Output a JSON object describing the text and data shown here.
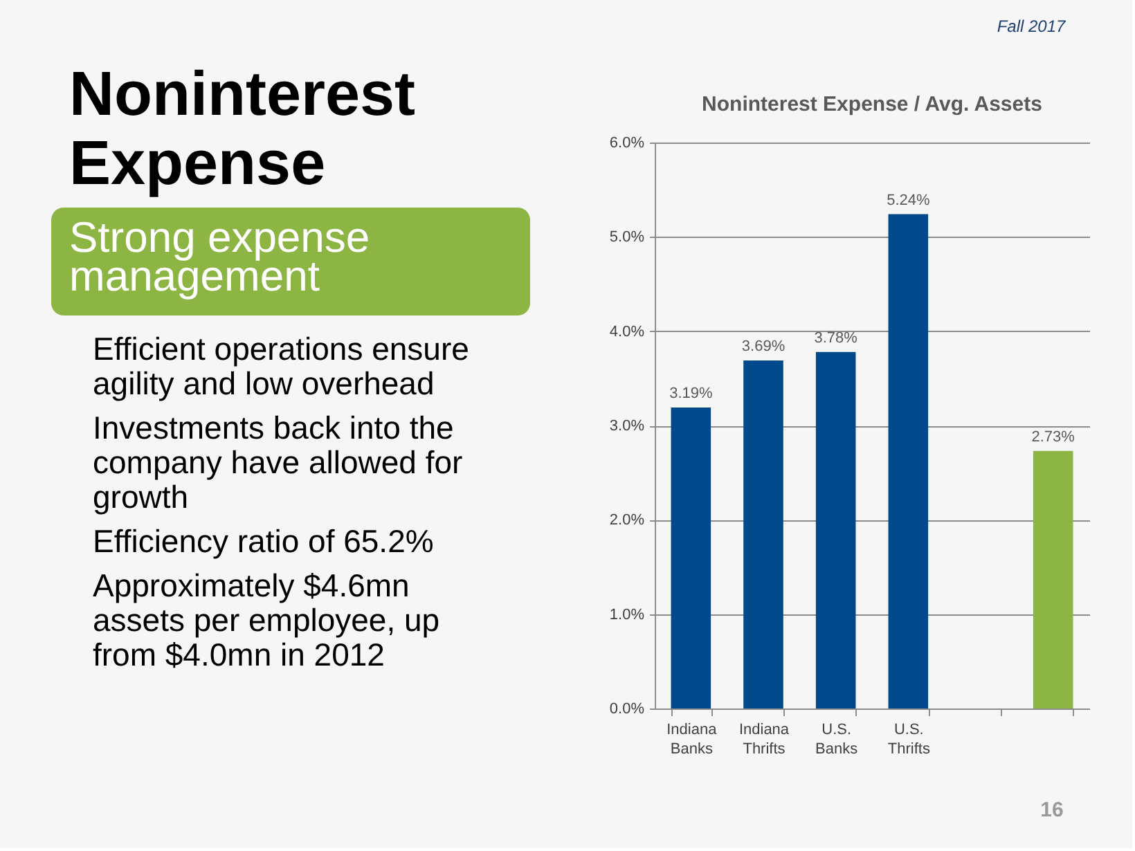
{
  "chart_data": [
    {
      "type": "other",
      "title": "Noninterest Expense",
      "subtitle": "Strong expense management",
      "color": "#8cb544",
      "annotations": [
        "Efficient operations ensure agility and low overhead",
        "Investments back into the company have allowed for growth",
        "Efficiency ratio of 65.2%",
        "Approximately $4.6mn assets per employee, up from $4.0mn in 2012"
      ]
    },
    {
      "type": "bar",
      "title": "Noninterest Expense / Avg. Assets",
      "categories": [
        "Indiana Banks",
        "Indiana Thrifts",
        "U.S. Banks",
        "U.S. Thrifts",
        null,
        null
      ],
      "values": [
        3.19,
        3.69,
        3.78,
        5.24,
        null,
        2.73
      ],
      "colors": [
        "#004a8c",
        "#004a8c",
        "#004a8c",
        "#004a8c",
        null,
        "#8cb544"
      ],
      "value_labels": [
        "3.19%",
        "3.69%",
        "3.78%",
        "5.24%",
        null,
        "2.73%"
      ],
      "ylim": [
        0,
        6
      ],
      "yticks": [
        {
          "value": 0,
          "label": "0.0%"
        },
        {
          "value": 1,
          "label": "1.0%"
        },
        {
          "value": 2,
          "label": "2.0%"
        },
        {
          "value": 3,
          "label": "3.0%"
        },
        {
          "value": 4,
          "label": "4.0%"
        },
        {
          "value": 5,
          "label": "5.0%"
        },
        {
          "value": 6,
          "label": "6.0%"
        }
      ],
      "grid": "y",
      "annotations": [
        "Fall 2017",
        "16"
      ]
    }
  ]
}
